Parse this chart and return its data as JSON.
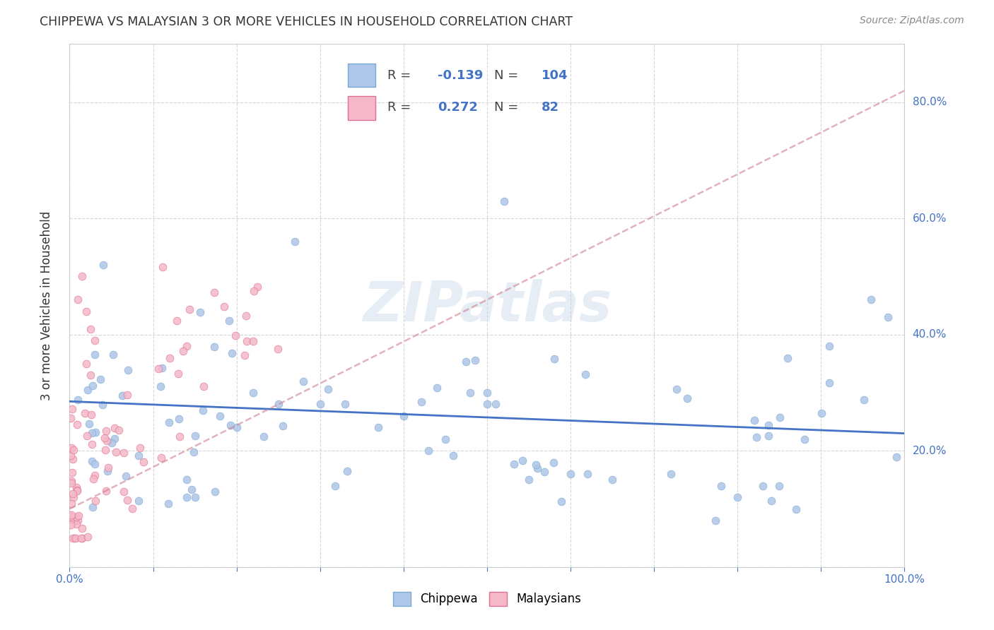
{
  "title": "CHIPPEWA VS MALAYSIAN 3 OR MORE VEHICLES IN HOUSEHOLD CORRELATION CHART",
  "source": "Source: ZipAtlas.com",
  "ylabel": "3 or more Vehicles in Household",
  "legend_R1": "-0.139",
  "legend_N1": "104",
  "legend_R2": "0.272",
  "legend_N2": "82",
  "chip_color": "#aec6e8",
  "chip_edge": "#7aaad0",
  "chip_line": "#4472c4",
  "malay_color": "#f4b8c8",
  "malay_edge": "#e07090",
  "malay_line": "#d08090",
  "background_color": "#ffffff",
  "grid_color": "#cccccc",
  "watermark": "ZIPatlas",
  "watermark_color": "#c8d8e8",
  "title_color": "#333333",
  "tick_color": "#4472c4",
  "xmin": 0.0,
  "xmax": 100.0,
  "ymin": 0.0,
  "ymax": 90.0,
  "chip_trend_x": [
    0.0,
    100.0
  ],
  "chip_trend_y": [
    28.5,
    23.0
  ],
  "malay_trend_x": [
    0.0,
    100.0
  ],
  "malay_trend_y": [
    10.0,
    82.0
  ]
}
